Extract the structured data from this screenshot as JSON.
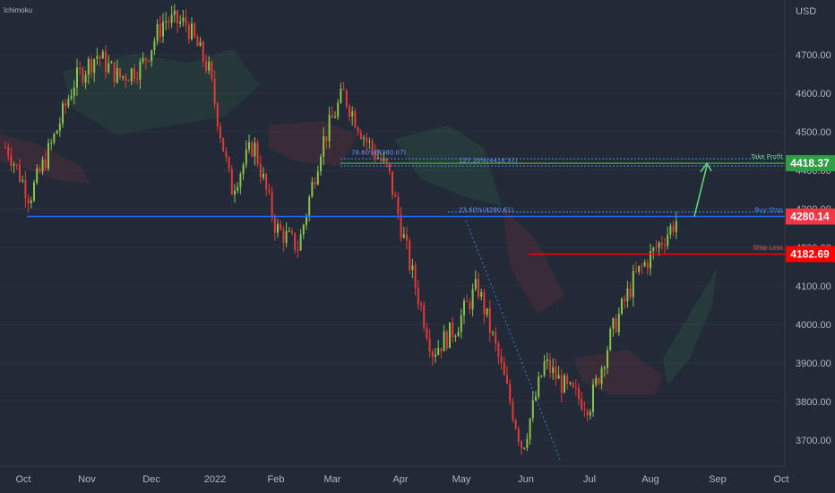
{
  "indicator_label": "Ichimoku",
  "chart_data": {
    "type": "candlestick",
    "title": "",
    "currency": "USD",
    "y_ticks": [
      "4700.00",
      "4600.00",
      "4500.00",
      "4400.00",
      "4300.00",
      "4200.00",
      "4100.00",
      "4000.00",
      "3900.00",
      "3800.00",
      "3700.00"
    ],
    "x_ticks": [
      "Oct",
      "Nov",
      "Dec",
      "2022",
      "Feb",
      "Mar",
      "Apr",
      "May",
      "Jun",
      "Jul",
      "Aug",
      "Sep",
      "Oct"
    ],
    "ylim": [
      3635,
      4815
    ],
    "x": [
      "Sep 24",
      "Oct 6",
      "Oct 19",
      "Nov 1",
      "Nov 15",
      "Nov 29",
      "Dec 13",
      "Dec 27",
      "Jan 4",
      "Jan 14",
      "Jan 27",
      "Feb 10",
      "Feb 24",
      "Mar 8",
      "Mar 18",
      "Mar 29",
      "Apr 8",
      "Apr 20",
      "May 2",
      "May 12",
      "May 24",
      "Jun 2",
      "Jun 10",
      "Jun 16",
      "Jun 24",
      "Jul 5",
      "Jul 14",
      "Jul 22",
      "Aug 1",
      "Aug 10",
      "Aug 16"
    ],
    "close": [
      4460,
      4330,
      4470,
      4630,
      4700,
      4640,
      4670,
      4790,
      4780,
      4660,
      4350,
      4470,
      4250,
      4200,
      4460,
      4600,
      4480,
      4400,
      4150,
      3930,
      3990,
      4100,
      3900,
      3680,
      3900,
      3830,
      3790,
      3980,
      4120,
      4200,
      4280
    ],
    "levels": [
      {
        "name": "Take Profit",
        "value": 4418.37,
        "price_label": "4418.37",
        "color": "#2f9e44"
      },
      {
        "name": "Buy Stop",
        "value": 4280.14,
        "price_label": "4280.14",
        "color": "#f23645"
      },
      {
        "name": "Stop Loss",
        "value": 4182.69,
        "price_label": "4182.69",
        "color": "#ff0000"
      }
    ],
    "fib_notes": [
      "78.60%(4380.07)",
      "127.20%(4418.37)",
      "23.60%(4280.61)"
    ]
  },
  "colors": {
    "background": "#222a38",
    "up": "#8bc34a",
    "down": "#e53935",
    "axis_text": "#b2b5be",
    "blue_line": "#2962ff"
  }
}
